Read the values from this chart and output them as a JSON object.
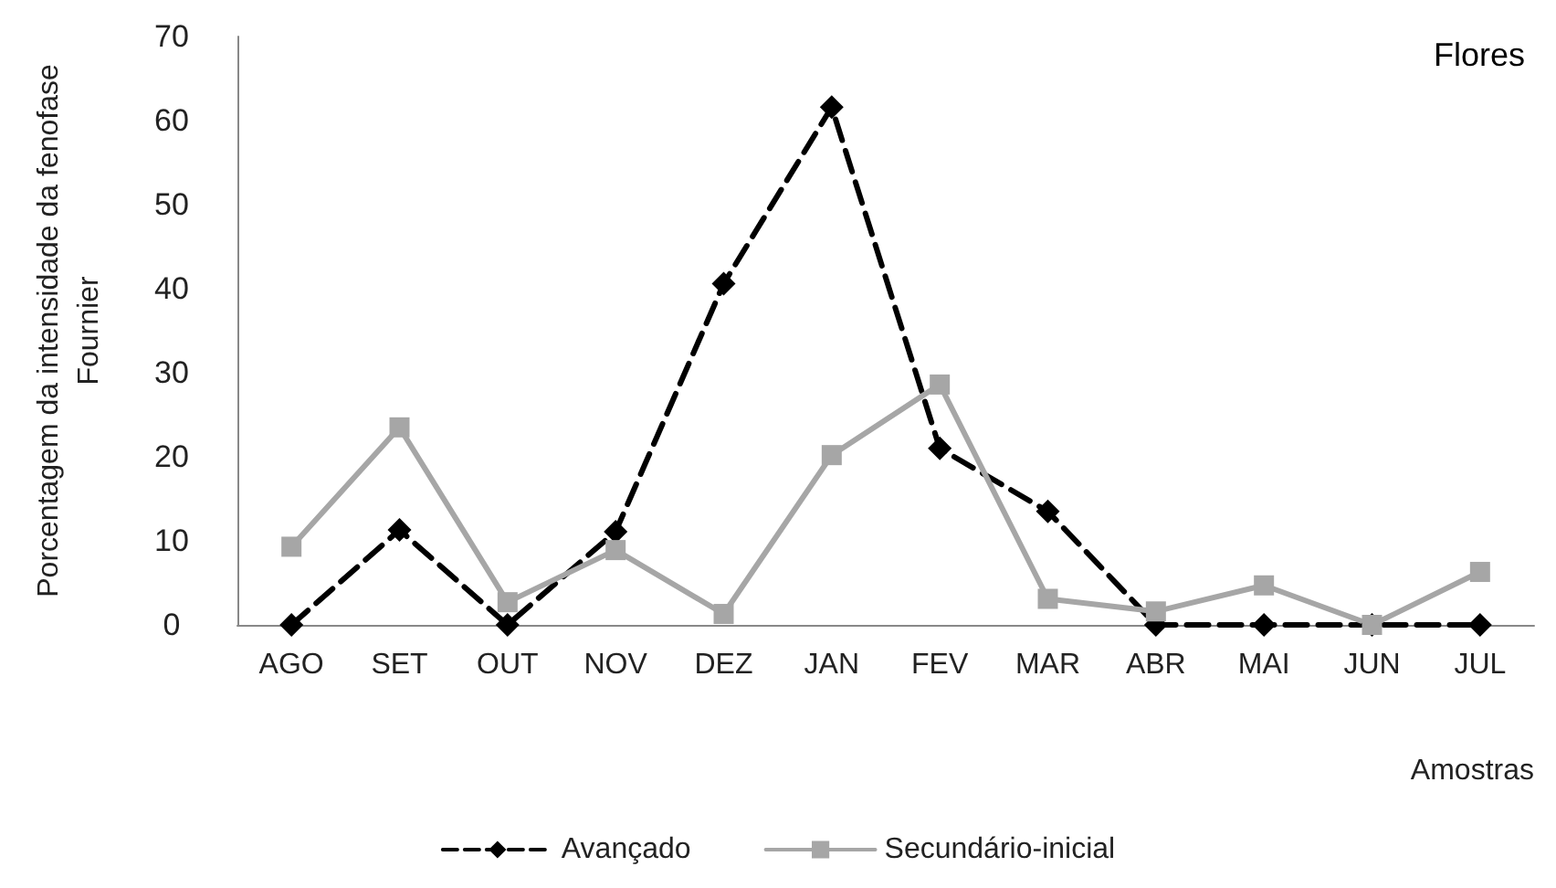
{
  "chart_data": {
    "type": "line",
    "title": "Flores",
    "xlabel": "Amostras",
    "ylabel": "Porcentagem da intensidade da fenofase\nFournier",
    "categories": [
      "AGO",
      "SET",
      "OUT",
      "NOV",
      "DEZ",
      "JAN",
      "FEV",
      "MAR",
      "ABR",
      "MAI",
      "JUN",
      "JUL"
    ],
    "series": [
      {
        "name": "Avançado",
        "color": "#000000",
        "marker": "diamond",
        "line_style": "dashed",
        "values": [
          0,
          11.3,
          0,
          11.1,
          40.6,
          61.6,
          21.0,
          13.5,
          0,
          0,
          0,
          0
        ]
      },
      {
        "name": "Secundário-inicial",
        "color": "#a6a6a6",
        "marker": "square",
        "line_style": "solid",
        "values": [
          9.3,
          23.5,
          2.7,
          8.9,
          1.3,
          20.2,
          28.6,
          3.1,
          1.6,
          4.7,
          0,
          6.3
        ]
      }
    ],
    "ylim": [
      0,
      70
    ],
    "yticks": [
      0,
      10,
      20,
      30,
      40,
      50,
      60,
      70
    ],
    "grid": false,
    "legend": "bottom"
  }
}
